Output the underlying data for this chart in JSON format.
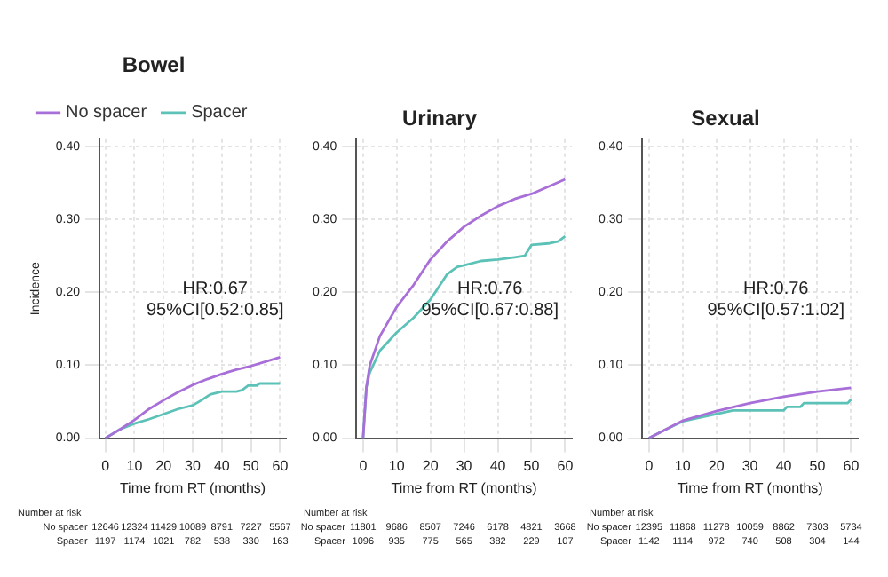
{
  "chart_data": [
    {
      "type": "line",
      "title": "Bowel",
      "xlabel": "Time from RT (months)",
      "ylabel": "Incidence",
      "xlim": [
        -2,
        62
      ],
      "ylim": [
        0,
        0.41
      ],
      "xticks": [
        0,
        10,
        20,
        30,
        40,
        50,
        60
      ],
      "yticks": [
        {
          "value": 0,
          "label": "0.00"
        },
        {
          "value": 0.1,
          "label": "0.10"
        },
        {
          "value": 0.2,
          "label": "0.20"
        },
        {
          "value": 0.3,
          "label": "0.30"
        },
        {
          "value": 0.4,
          "label": "0.40"
        }
      ],
      "grid": true,
      "legend": "top left",
      "series": [
        {
          "name": "No spacer",
          "color": "#a86fd8",
          "x": [
            0,
            5,
            10,
            15,
            20,
            25,
            30,
            35,
            40,
            45,
            50,
            55,
            60
          ],
          "values": [
            0,
            0.012,
            0.025,
            0.04,
            0.052,
            0.063,
            0.073,
            0.081,
            0.088,
            0.094,
            0.099,
            0.105,
            0.111
          ]
        },
        {
          "name": "Spacer",
          "color": "#5cc2b8",
          "x": [
            0,
            5,
            10,
            15,
            20,
            25,
            30,
            33,
            36,
            40,
            45,
            47,
            49,
            52,
            53,
            60
          ],
          "values": [
            0,
            0.012,
            0.02,
            0.026,
            0.033,
            0.04,
            0.045,
            0.052,
            0.06,
            0.064,
            0.064,
            0.066,
            0.072,
            0.072,
            0.075,
            0.075
          ]
        }
      ],
      "annotations": [
        "HR:0.67",
        "95%CI[0.52:0.85]",
        "Number at risk",
        "No spacer 12646 12324 11429 10089 8791 7227 5567",
        "Spacer 1197 1174 1021 782 538 330 163"
      ]
    },
    {
      "type": "line",
      "title": "Urinary",
      "xlabel": "Time from RT (months)",
      "xlim": [
        -2,
        62
      ],
      "ylim": [
        0,
        0.41
      ],
      "xticks": [
        0,
        10,
        20,
        30,
        40,
        50,
        60
      ],
      "yticks": [
        {
          "value": 0,
          "label": "0.00"
        },
        {
          "value": 0.1,
          "label": "0.10"
        },
        {
          "value": 0.2,
          "label": "0.20"
        },
        {
          "value": 0.3,
          "label": "0.30"
        },
        {
          "value": 0.4,
          "label": "0.40"
        }
      ],
      "grid": true,
      "series": [
        {
          "color": "#a86fd8",
          "x": [
            0,
            1,
            2,
            5,
            10,
            15,
            20,
            25,
            30,
            35,
            40,
            45,
            50,
            55,
            60
          ],
          "values": [
            0,
            0.07,
            0.1,
            0.14,
            0.18,
            0.21,
            0.245,
            0.27,
            0.29,
            0.305,
            0.318,
            0.328,
            0.335,
            0.345,
            0.355
          ]
        },
        {
          "color": "#5cc2b8",
          "x": [
            0,
            1,
            2,
            5,
            10,
            15,
            20,
            25,
            28,
            30,
            35,
            40,
            45,
            48,
            50,
            55,
            58,
            60
          ],
          "values": [
            0,
            0.07,
            0.09,
            0.12,
            0.145,
            0.165,
            0.19,
            0.225,
            0.235,
            0.237,
            0.243,
            0.245,
            0.248,
            0.25,
            0.265,
            0.267,
            0.27,
            0.277
          ]
        }
      ],
      "annotations": [
        "HR:0.76",
        "95%CI[0.67:0.88]",
        "Number at risk",
        "No spacer 11801 9686 8507 7246 6178 4821 3668",
        "Spacer 1096 935 775 565 382 229 107"
      ]
    },
    {
      "type": "line",
      "title": "Sexual",
      "xlabel": "Time from RT (months)",
      "xlim": [
        -2,
        62
      ],
      "ylim": [
        0,
        0.41
      ],
      "xticks": [
        0,
        10,
        20,
        30,
        40,
        50,
        60
      ],
      "yticks": [
        {
          "value": 0,
          "label": "0.00"
        },
        {
          "value": 0.1,
          "label": "0.10"
        },
        {
          "value": 0.2,
          "label": "0.20"
        },
        {
          "value": 0.3,
          "label": "0.30"
        },
        {
          "value": 0.4,
          "label": "0.40"
        }
      ],
      "grid": true,
      "series": [
        {
          "color": "#a86fd8",
          "x": [
            0,
            5,
            10,
            20,
            30,
            40,
            50,
            60
          ],
          "values": [
            0,
            0.012,
            0.024,
            0.037,
            0.048,
            0.057,
            0.064,
            0.069
          ]
        },
        {
          "color": "#5cc2b8",
          "x": [
            0,
            5,
            10,
            20,
            25,
            30,
            40,
            41,
            45,
            46,
            59,
            60
          ],
          "values": [
            0,
            0.012,
            0.023,
            0.033,
            0.038,
            0.038,
            0.038,
            0.043,
            0.043,
            0.048,
            0.048,
            0.053
          ]
        }
      ],
      "annotations": [
        "HR:0.76",
        "95%CI[0.57:1.02]",
        "Number at risk",
        "No spacer 12395 11868 11278 10059 8862 7303 5734",
        "Spacer 1142 1114 972 740 508 304 144"
      ]
    }
  ]
}
